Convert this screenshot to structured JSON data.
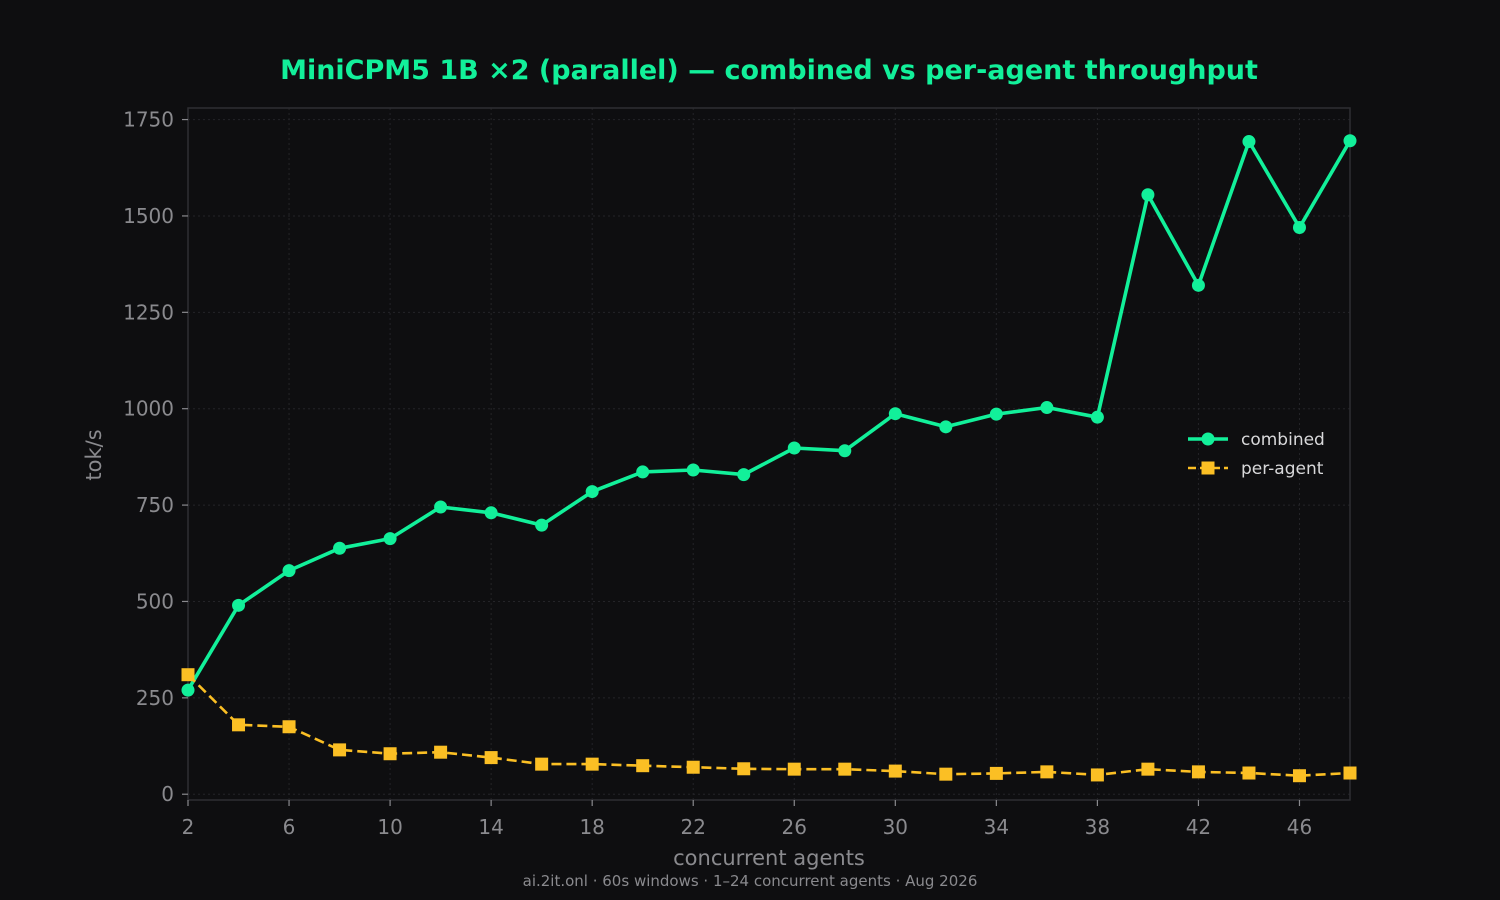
{
  "chart_data": {
    "type": "line",
    "title": "MiniCPM5 1B ×2 (parallel) — combined vs per-agent throughput",
    "xlabel": "concurrent agents",
    "ylabel": "tok/s",
    "footer": "ai.2it.onl · 60s windows · 1–24 concurrent agents · Aug 2026",
    "xlim": [
      2,
      48
    ],
    "ylim": [
      -15,
      1780
    ],
    "x_ticks": [
      2,
      6,
      10,
      14,
      18,
      22,
      26,
      30,
      34,
      38,
      42,
      46
    ],
    "y_ticks": [
      0,
      250,
      500,
      750,
      1000,
      1250,
      1500,
      1750
    ],
    "grid": true,
    "legend_position": "center-right",
    "x": [
      2,
      4,
      6,
      8,
      10,
      12,
      14,
      16,
      18,
      20,
      22,
      24,
      26,
      28,
      30,
      32,
      34,
      36,
      38,
      40,
      42,
      44,
      46,
      48
    ],
    "series": [
      {
        "name": "combined",
        "color": "#12f09a",
        "style": "solid",
        "marker": "circle",
        "values": [
          270,
          490,
          580,
          638,
          663,
          745,
          730,
          698,
          785,
          836,
          841,
          829,
          898,
          891,
          987,
          953,
          986,
          1003,
          978,
          1555,
          1320,
          1693,
          1470,
          1695
        ]
      },
      {
        "name": "per-agent",
        "color": "#fbbf24",
        "style": "dashed",
        "marker": "square",
        "values": [
          310,
          180,
          175,
          115,
          105,
          109,
          95,
          78,
          78,
          74,
          70,
          66,
          65,
          65,
          60,
          52,
          54,
          58,
          50,
          65,
          58,
          55,
          48,
          55
        ]
      }
    ]
  },
  "colors": {
    "background": "#0e0e10",
    "title": "#12f09a",
    "frame": "#2e2e32",
    "grid": "#242428",
    "tick_text": "#8a8a8e",
    "legend_text": "#d8d8da"
  }
}
